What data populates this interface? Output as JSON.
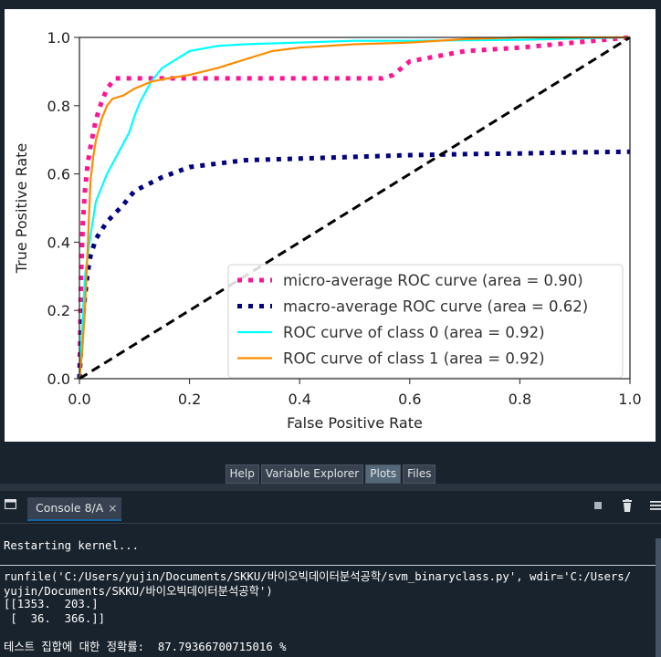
{
  "plot": {
    "chart_data": {
      "type": "line",
      "title": "",
      "xlabel": "False Positive Rate",
      "ylabel": "True Positive Rate",
      "xlim": [
        0.0,
        1.0
      ],
      "ylim": [
        0.0,
        1.0
      ],
      "xticks": [
        "0.0",
        "0.2",
        "0.4",
        "0.6",
        "0.8",
        "1.0"
      ],
      "yticks": [
        "0.0",
        "0.2",
        "0.4",
        "0.6",
        "0.8",
        "1.0"
      ],
      "grid": false,
      "legend_position": "lower-right",
      "series": [
        {
          "name": "micro-average ROC curve (area = 0.90)",
          "color": "#ff1493",
          "style": "dotted",
          "x": [
            0,
            0.003,
            0.006,
            0.01,
            0.015,
            0.02,
            0.025,
            0.03,
            0.04,
            0.05,
            0.065,
            0.1,
            0.2,
            0.4,
            0.55,
            0.57,
            0.6,
            0.7,
            0.8,
            0.9,
            1.0
          ],
          "y": [
            0,
            0.3,
            0.45,
            0.55,
            0.63,
            0.68,
            0.72,
            0.76,
            0.81,
            0.85,
            0.88,
            0.88,
            0.88,
            0.88,
            0.88,
            0.89,
            0.93,
            0.96,
            0.97,
            0.985,
            1.0
          ]
        },
        {
          "name": "macro-average ROC curve (area = 0.62)",
          "color": "#000080",
          "style": "dotted",
          "x": [
            0,
            0.005,
            0.01,
            0.015,
            0.02,
            0.03,
            0.05,
            0.08,
            0.1,
            0.15,
            0.2,
            0.3,
            0.4,
            0.5,
            0.6,
            0.7,
            0.8,
            0.9,
            1.0
          ],
          "y": [
            0,
            0.15,
            0.24,
            0.31,
            0.36,
            0.41,
            0.46,
            0.51,
            0.55,
            0.59,
            0.62,
            0.64,
            0.645,
            0.65,
            0.655,
            0.658,
            0.66,
            0.663,
            0.665
          ]
        },
        {
          "name": "ROC curve of class 0 (area = 0.92)",
          "color": "#00ffff",
          "style": "solid",
          "x": [
            0,
            0.005,
            0.01,
            0.02,
            0.03,
            0.05,
            0.07,
            0.09,
            0.1,
            0.11,
            0.12,
            0.13,
            0.15,
            0.18,
            0.2,
            0.25,
            0.3,
            0.4,
            0.5,
            0.6,
            0.8,
            1.0
          ],
          "y": [
            0,
            0.15,
            0.3,
            0.42,
            0.52,
            0.6,
            0.66,
            0.72,
            0.77,
            0.81,
            0.84,
            0.87,
            0.91,
            0.94,
            0.96,
            0.975,
            0.98,
            0.985,
            0.99,
            0.99,
            0.993,
            1.0
          ]
        },
        {
          "name": "ROC curve of class 1 (area = 0.92)",
          "color": "#ff8c00",
          "style": "solid",
          "x": [
            0,
            0.005,
            0.01,
            0.015,
            0.02,
            0.025,
            0.03,
            0.04,
            0.05,
            0.06,
            0.08,
            0.1,
            0.13,
            0.16,
            0.2,
            0.25,
            0.3,
            0.35,
            0.4,
            0.5,
            0.6,
            0.7,
            0.8,
            1.0
          ],
          "y": [
            0,
            0.08,
            0.2,
            0.38,
            0.58,
            0.65,
            0.7,
            0.76,
            0.8,
            0.82,
            0.83,
            0.85,
            0.87,
            0.88,
            0.89,
            0.91,
            0.935,
            0.96,
            0.97,
            0.98,
            0.985,
            0.995,
            1.0,
            1.0
          ]
        },
        {
          "name": "",
          "color": "#000000",
          "style": "dashed",
          "x": [
            0,
            1
          ],
          "y": [
            0,
            1
          ]
        }
      ]
    }
  },
  "pane_tabs": [
    "Help",
    "Variable Explorer",
    "Plots",
    "Files"
  ],
  "console": {
    "tab_label": "Console 8/A",
    "close_glyph": "×",
    "lines": [
      "Restarting kernel...",
      "runfile('C:/Users/yujin/Documents/SKKU/바이오빅데이터분석공학/svm_binaryclass.py', wdir='C:/Users/",
      "yujin/Documents/SKKU/바이오빅데이터분석공학')",
      "[[1353.  203.]",
      " [  36.  366.]]",
      "테스트 집합에 대한 정확률:  87.79366700715016 %"
    ]
  },
  "colors": {
    "background": "#19232d",
    "tab_accent": "#1464a0"
  },
  "icons": [
    "browse-tabs-icon",
    "stop-icon",
    "trash-icon",
    "menu-icon"
  ]
}
